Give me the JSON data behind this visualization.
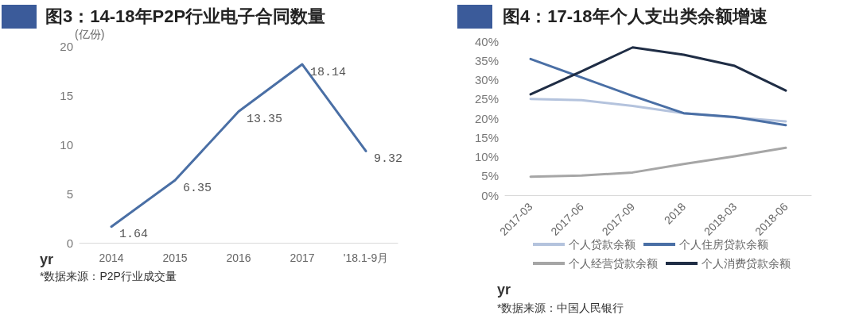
{
  "chart_data": [
    {
      "type": "line",
      "title": "图3：14-18年P2P行业电子合同数量",
      "ylabel": "(亿份)",
      "xlabel": "yr",
      "categories": [
        "2014",
        "2015",
        "2016",
        "2017",
        "'18.1-9月"
      ],
      "series": [
        {
          "color": "#4a6fa5",
          "values": [
            1.64,
            6.35,
            13.35,
            18.14,
            9.32
          ]
        }
      ],
      "ylim": [
        0,
        20
      ],
      "yticks": [
        0,
        5,
        10,
        15,
        20
      ],
      "grid": false,
      "legend": false,
      "marker": "none",
      "data_labels": true,
      "annotations": [
        "*数据来源：P2P行业成交量"
      ]
    },
    {
      "type": "line",
      "title": "图4：17-18年个人支出类余额增速",
      "xlabel": "yr",
      "categories": [
        "2017-03",
        "2017-06",
        "2017-09",
        "2018",
        "2018-03",
        "2018-06"
      ],
      "series": [
        {
          "name": "个人贷款余额",
          "color": "#b4c3dd",
          "values": [
            25.0,
            24.7,
            23.2,
            21.3,
            20.2,
            19.2
          ]
        },
        {
          "name": "个人住房贷款余额",
          "color": "#4a6fa5",
          "values": [
            35.4,
            30.6,
            25.8,
            21.3,
            20.3,
            18.2
          ]
        },
        {
          "name": "个人经营贷款余额",
          "color": "#a6a6a6",
          "values": [
            4.8,
            5.1,
            5.9,
            8.1,
            10.1,
            12.3
          ]
        },
        {
          "name": "个人消费贷款余额",
          "color": "#1f2d45",
          "values": [
            26.2,
            32.2,
            38.4,
            36.5,
            33.6,
            27.2
          ]
        }
      ],
      "ylim": [
        0,
        40
      ],
      "yticks": [
        {
          "value": 0,
          "label": "0%"
        },
        {
          "value": 5,
          "label": "5%"
        },
        {
          "value": 10,
          "label": "10%"
        },
        {
          "value": 15,
          "label": "15%"
        },
        {
          "value": 20,
          "label": "20%"
        },
        {
          "value": 25,
          "label": "25%"
        },
        {
          "value": 30,
          "label": "30%"
        },
        {
          "value": 35,
          "label": "35%"
        },
        {
          "value": 40,
          "label": "40%"
        }
      ],
      "grid": false,
      "legend": "bottom",
      "marker": "none",
      "annotations": [
        "*数据来源：中国人民银行"
      ]
    }
  ]
}
